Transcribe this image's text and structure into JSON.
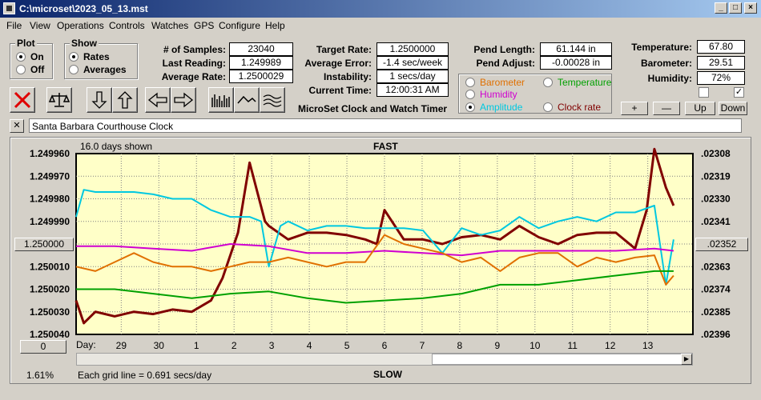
{
  "window": {
    "title": "C:\\microset\\2023_05_13.mst"
  },
  "menu": [
    "File",
    "View",
    "Operations",
    "Controls",
    "Watches",
    "GPS",
    "Configure",
    "Help"
  ],
  "plot_group": {
    "title": "Plot",
    "on": "On",
    "off": "Off",
    "selected": "On"
  },
  "show_group": {
    "title": "Show",
    "rates": "Rates",
    "averages": "Averages",
    "selected": "Rates"
  },
  "stats": {
    "samples_label": "# of Samples:",
    "samples": "23040",
    "last_label": "Last Reading:",
    "last": "1.249989",
    "avg_rate_label": "Average Rate:",
    "avg_rate": "1.2500029",
    "target_label": "Target Rate:",
    "target": "1.2500000",
    "avg_err_label": "Average Error:",
    "avg_err": "-1.4 sec/week",
    "instab_label": "Instability:",
    "instab": "1 secs/day",
    "time_label": "Current Time:",
    "time": "12:00:31 AM",
    "pend_len_label": "Pend Length:",
    "pend_len": "61.144 in",
    "pend_adj_label": "Pend Adjust:",
    "pend_adj": "-0.00028 in",
    "temp_label": "Temperature:",
    "temp": "67.80",
    "baro_label": "Barometer:",
    "baro": "29.51",
    "hum_label": "Humidity:",
    "hum": "72%"
  },
  "subtitle": "MicroSet Clock and Watch Timer",
  "sensors": {
    "barometer": "Barometer",
    "temperature": "Temperature",
    "humidity": "Humidity",
    "amplitude": "Amplitude",
    "clock_rate": "Clock rate",
    "selected": "Amplitude",
    "colors": {
      "barometer": "#e07000",
      "temperature": "#00a000",
      "humidity": "#d000d0",
      "amplitude": "#00c8e0",
      "clock_rate": "#800000"
    }
  },
  "adjust_buttons": {
    "plus": "+",
    "minus": "—",
    "up": "Up",
    "down": "Down"
  },
  "close_box": "✕",
  "description": "Santa Barbara Courthouse Clock",
  "chart_labels": {
    "days_shown": "16.0 days shown",
    "top": "FAST",
    "bottom": "SLOW",
    "grid_note": "Each grid line = 0.691 secs/day",
    "percent": "1.61%",
    "day_prefix": "Day:",
    "center_button": "1.250000",
    "right_button": ".02352",
    "zero_button": "0"
  },
  "chart_data": {
    "type": "line",
    "left_axis_ticks": [
      "1.249960",
      "1.249970",
      "1.249980",
      "1.249990",
      "1.250000",
      "1.250010",
      "1.250020",
      "1.250030",
      "1.250040"
    ],
    "right_axis_ticks": [
      ".02308",
      ".02319",
      ".02330",
      ".02341",
      ".02352",
      ".02363",
      ".02374",
      ".02385",
      ".02396"
    ],
    "x_ticks": [
      "29",
      "30",
      "1",
      "2",
      "3",
      "4",
      "5",
      "6",
      "7",
      "8",
      "9",
      "10",
      "11",
      "12",
      "13"
    ],
    "x_range": [
      0,
      16
    ],
    "ylim": [
      1.24996,
      1.25004
    ],
    "background": "#ffffc8",
    "series": [
      {
        "name": "Clock rate",
        "color": "#800000",
        "x": [
          0,
          0.2,
          0.5,
          1,
          1.5,
          2,
          2.5,
          3,
          3.5,
          3.8,
          4.0,
          4.2,
          4.5,
          4.9,
          5.0,
          5.5,
          6,
          6.5,
          7,
          7.5,
          7.8,
          8,
          8.5,
          9,
          9.5,
          10,
          10.5,
          11,
          11.5,
          12,
          12.5,
          13,
          13.5,
          14,
          14.5,
          14.8,
          15.0,
          15.3,
          15.5
        ],
        "y": [
          1.250025,
          1.250035,
          1.25003,
          1.250032,
          1.25003,
          1.250031,
          1.250029,
          1.25003,
          1.250025,
          1.250015,
          1.250005,
          1.249995,
          1.249964,
          1.24999,
          1.249992,
          1.249998,
          1.249995,
          1.249995,
          1.249996,
          1.249998,
          1.25,
          1.249985,
          1.249998,
          1.249998,
          1.25,
          1.249997,
          1.249996,
          1.249998,
          1.249992,
          1.249997,
          1.25,
          1.249996,
          1.249995,
          1.249995,
          1.250002,
          1.249985,
          1.249958,
          1.249975,
          1.249983
        ]
      },
      {
        "name": "Amplitude",
        "color": "#00c8e0",
        "x": [
          0,
          0.2,
          0.5,
          1,
          1.5,
          2,
          2.5,
          3,
          3.5,
          4,
          4.5,
          4.8,
          5.0,
          5.3,
          5.5,
          6,
          6.5,
          7,
          7.5,
          8,
          8.5,
          9,
          9.5,
          10,
          10.5,
          11,
          11.5,
          12,
          12.5,
          13,
          13.5,
          14,
          14.5,
          15.0,
          15.3,
          15.5
        ],
        "y": [
          1.249988,
          1.249976,
          1.249977,
          1.249977,
          1.249977,
          1.249978,
          1.24998,
          1.24998,
          1.249985,
          1.249988,
          1.249988,
          1.24999,
          1.25001,
          1.249992,
          1.24999,
          1.249994,
          1.249992,
          1.249992,
          1.249993,
          1.249993,
          1.249993,
          1.249994,
          1.250004,
          1.249993,
          1.249996,
          1.249994,
          1.249988,
          1.249993,
          1.24999,
          1.249988,
          1.24999,
          1.249986,
          1.249986,
          1.249983,
          1.250018,
          1.249998
        ]
      },
      {
        "name": "Humidity",
        "color": "#d000d0",
        "x": [
          0,
          1,
          2,
          3,
          4,
          5,
          6,
          7,
          8,
          9,
          10,
          11,
          12,
          13,
          14,
          15,
          15.5
        ],
        "y": [
          1.250001,
          1.250001,
          1.250002,
          1.250003,
          1.25,
          1.250001,
          1.250004,
          1.250004,
          1.250003,
          1.250004,
          1.250005,
          1.250003,
          1.250003,
          1.250003,
          1.250003,
          1.250002,
          1.250003
        ]
      },
      {
        "name": "Barometer",
        "color": "#e07000",
        "x": [
          0,
          0.5,
          1,
          1.5,
          2,
          2.5,
          3,
          3.5,
          4,
          4.5,
          5,
          5.5,
          6,
          6.5,
          7,
          7.5,
          8,
          8.5,
          9,
          9.5,
          10,
          10.5,
          11,
          11.5,
          12,
          12.5,
          13,
          13.5,
          14,
          14.5,
          15,
          15.3,
          15.5
        ],
        "y": [
          1.25001,
          1.250012,
          1.250008,
          1.250004,
          1.250008,
          1.25001,
          1.25001,
          1.250012,
          1.25001,
          1.250008,
          1.250008,
          1.250006,
          1.250008,
          1.25001,
          1.250008,
          1.250008,
          1.249996,
          1.25,
          1.250002,
          1.250004,
          1.250008,
          1.250006,
          1.250012,
          1.250006,
          1.250004,
          1.250004,
          1.25001,
          1.250006,
          1.250008,
          1.250006,
          1.250005,
          1.250018,
          1.250014
        ]
      },
      {
        "name": "Temperature",
        "color": "#00a000",
        "x": [
          0,
          1,
          2,
          3,
          4,
          5,
          6,
          7,
          8,
          9,
          10,
          11,
          12,
          13,
          14,
          15,
          15.5
        ],
        "y": [
          1.25002,
          1.25002,
          1.250022,
          1.250024,
          1.250022,
          1.250021,
          1.250024,
          1.250026,
          1.250025,
          1.250024,
          1.250022,
          1.250018,
          1.250018,
          1.250016,
          1.250014,
          1.250012,
          1.250012
        ]
      }
    ]
  }
}
